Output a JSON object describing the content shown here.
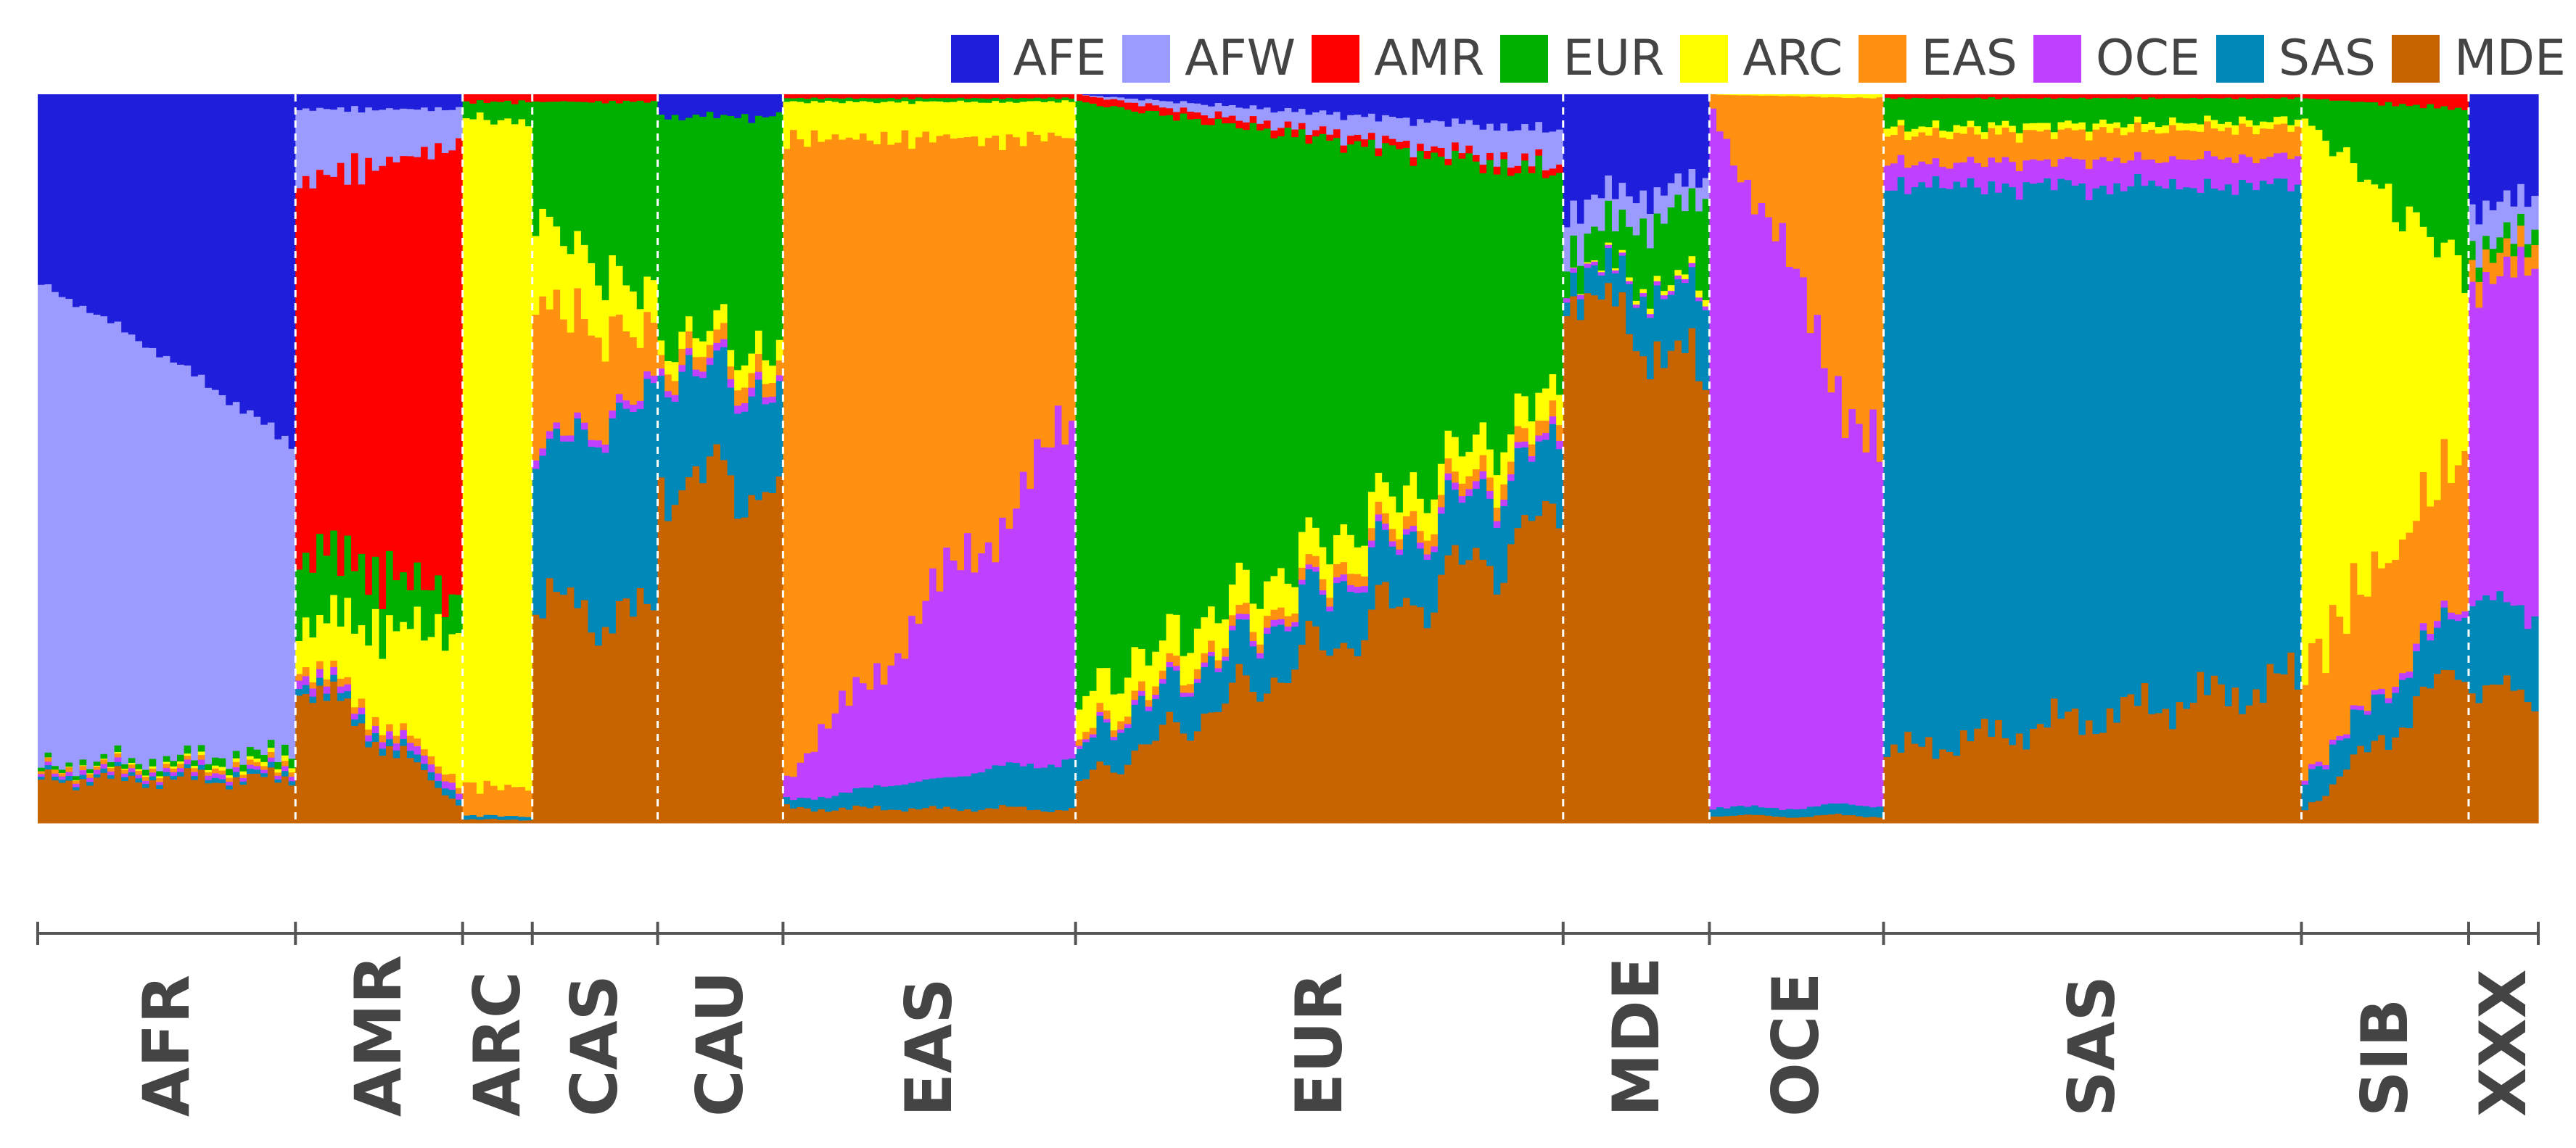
{
  "chart_data": {
    "type": "stacked_bar",
    "description_of_axes": "",
    "components": [
      {
        "name": "AFE",
        "color": "#1f1fdb"
      },
      {
        "name": "AFW",
        "color": "#9b9bff"
      },
      {
        "name": "AMR",
        "color": "#ff0000"
      },
      {
        "name": "EUR",
        "color": "#00b000"
      },
      {
        "name": "ARC",
        "color": "#ffff00"
      },
      {
        "name": "EAS",
        "color": "#ff9010"
      },
      {
        "name": "OCE",
        "color": "#c040ff"
      },
      {
        "name": "SAS",
        "color": "#0088b8"
      },
      {
        "name": "MDE",
        "color": "#c86400"
      }
    ],
    "ylim": [
      0,
      1
    ],
    "legend_position": "top-right",
    "groups": [
      {
        "label": "AFR",
        "n": 37,
        "start": {
          "AFE": 0.26,
          "AFW": 0.66,
          "AMR": 0.0,
          "EUR": 0.005,
          "ARC": 0.0,
          "EAS": 0.005,
          "OCE": 0.005,
          "SAS": 0.005,
          "MDE": 0.06
        },
        "end": {
          "AFE": 0.4,
          "AFW": 0.35,
          "AMR": 0.0,
          "EUR": 0.01,
          "ARC": 0.005,
          "EAS": 0.005,
          "OCE": 0.005,
          "SAS": 0.005,
          "MDE": 0.05
        }
      },
      {
        "label": "AMR",
        "n": 24,
        "start": {
          "AFE": 0.02,
          "AFW": 0.1,
          "AMR": 0.5,
          "EUR": 0.1,
          "ARC": 0.05,
          "EAS": 0.01,
          "OCE": 0.01,
          "SAS": 0.01,
          "MDE": 0.2
        },
        "end": {
          "AFE": 0.02,
          "AFW": 0.05,
          "AMR": 0.62,
          "EUR": 0.05,
          "ARC": 0.2,
          "EAS": 0.01,
          "OCE": 0.01,
          "SAS": 0.01,
          "MDE": 0.03
        }
      },
      {
        "label": "ARC",
        "n": 10,
        "start": {
          "AFE": 0.0,
          "AFW": 0.0,
          "AMR": 0.01,
          "EUR": 0.02,
          "ARC": 0.92,
          "EAS": 0.04,
          "OCE": 0.0,
          "SAS": 0.005,
          "MDE": 0.005
        },
        "end": {
          "AFE": 0.0,
          "AFW": 0.0,
          "AMR": 0.01,
          "EUR": 0.03,
          "ARC": 0.91,
          "EAS": 0.04,
          "OCE": 0.0,
          "SAS": 0.005,
          "MDE": 0.005
        }
      },
      {
        "label": "CAS",
        "n": 18,
        "start": {
          "AFE": 0.0,
          "AFW": 0.0,
          "AMR": 0.01,
          "EUR": 0.16,
          "ARC": 0.12,
          "EAS": 0.2,
          "OCE": 0.01,
          "SAS": 0.2,
          "MDE": 0.3
        },
        "end": {
          "AFE": 0.0,
          "AFW": 0.0,
          "AMR": 0.01,
          "EUR": 0.28,
          "ARC": 0.05,
          "EAS": 0.07,
          "OCE": 0.01,
          "SAS": 0.3,
          "MDE": 0.28
        }
      },
      {
        "label": "CAU",
        "n": 18,
        "start": {
          "AFE": 0.03,
          "AFW": 0.0,
          "AMR": 0.0,
          "EUR": 0.29,
          "ARC": 0.02,
          "EAS": 0.02,
          "OCE": 0.01,
          "SAS": 0.15,
          "MDE": 0.48
        },
        "end": {
          "AFE": 0.03,
          "AFW": 0.0,
          "AMR": 0.0,
          "EUR": 0.32,
          "ARC": 0.03,
          "EAS": 0.02,
          "OCE": 0.01,
          "SAS": 0.13,
          "MDE": 0.46
        }
      },
      {
        "label": "EAS",
        "n": 42,
        "start": {
          "AFE": 0.0,
          "AFW": 0.0,
          "AMR": 0.005,
          "EUR": 0.005,
          "ARC": 0.05,
          "EAS": 0.88,
          "OCE": 0.03,
          "SAS": 0.01,
          "MDE": 0.02
        },
        "end": {
          "AFE": 0.0,
          "AFW": 0.0,
          "AMR": 0.005,
          "EUR": 0.005,
          "ARC": 0.05,
          "EAS": 0.4,
          "OCE": 0.45,
          "SAS": 0.07,
          "MDE": 0.02
        }
      },
      {
        "label": "EUR",
        "n": 70,
        "start": {
          "AFE": 0.0,
          "AFW": 0.0,
          "AMR": 0.01,
          "EUR": 0.82,
          "ARC": 0.05,
          "EAS": 0.01,
          "OCE": 0.005,
          "SAS": 0.05,
          "MDE": 0.055
        },
        "end": {
          "AFE": 0.05,
          "AFW": 0.05,
          "AMR": 0.01,
          "EUR": 0.3,
          "ARC": 0.04,
          "EAS": 0.02,
          "OCE": 0.01,
          "SAS": 0.1,
          "MDE": 0.42
        }
      },
      {
        "label": "MDE",
        "n": 21,
        "start": {
          "AFE": 0.15,
          "AFW": 0.05,
          "AMR": 0.0,
          "EUR": 0.03,
          "ARC": 0.0,
          "EAS": 0.0,
          "OCE": 0.005,
          "SAS": 0.02,
          "MDE": 0.745
        },
        "end": {
          "AFE": 0.12,
          "AFW": 0.03,
          "AMR": 0.0,
          "EUR": 0.12,
          "ARC": 0.01,
          "EAS": 0.0,
          "OCE": 0.005,
          "SAS": 0.11,
          "MDE": 0.605
        }
      },
      {
        "label": "OCE",
        "n": 25,
        "start": {
          "AFE": 0.0,
          "AFW": 0.0,
          "AMR": 0.0,
          "EUR": 0.0,
          "ARC": 0.0,
          "EAS": 0.02,
          "OCE": 0.96,
          "SAS": 0.01,
          "MDE": 0.01
        },
        "end": {
          "AFE": 0.0,
          "AFW": 0.0,
          "AMR": 0.0,
          "EUR": 0.0,
          "ARC": 0.005,
          "EAS": 0.5,
          "OCE": 0.47,
          "SAS": 0.015,
          "MDE": 0.01
        }
      },
      {
        "label": "SAS",
        "n": 60,
        "start": {
          "AFE": 0.0,
          "AFW": 0.0,
          "AMR": 0.005,
          "EUR": 0.04,
          "ARC": 0.01,
          "EAS": 0.04,
          "OCE": 0.03,
          "SAS": 0.78,
          "MDE": 0.095
        },
        "end": {
          "AFE": 0.0,
          "AFW": 0.0,
          "AMR": 0.005,
          "EUR": 0.03,
          "ARC": 0.01,
          "EAS": 0.04,
          "OCE": 0.04,
          "SAS": 0.68,
          "MDE": 0.195
        }
      },
      {
        "label": "SIB",
        "n": 24,
        "start": {
          "AFE": 0.0,
          "AFW": 0.0,
          "AMR": 0.005,
          "EUR": 0.03,
          "ARC": 0.75,
          "EAS": 0.15,
          "OCE": 0.005,
          "SAS": 0.04,
          "MDE": 0.02
        },
        "end": {
          "AFE": 0.0,
          "AFW": 0.0,
          "AMR": 0.02,
          "EUR": 0.22,
          "ARC": 0.25,
          "EAS": 0.2,
          "OCE": 0.01,
          "SAS": 0.08,
          "MDE": 0.22
        }
      },
      {
        "label": "XXX",
        "n": 10,
        "start": {
          "AFE": 0.15,
          "AFW": 0.05,
          "AMR": 0.0,
          "EUR": 0.02,
          "ARC": 0.0,
          "EAS": 0.03,
          "OCE": 0.45,
          "SAS": 0.12,
          "MDE": 0.18
        },
        "end": {
          "AFE": 0.15,
          "AFW": 0.05,
          "AMR": 0.0,
          "EUR": 0.02,
          "ARC": 0.0,
          "EAS": 0.03,
          "OCE": 0.45,
          "SAS": 0.12,
          "MDE": 0.18
        }
      }
    ]
  }
}
